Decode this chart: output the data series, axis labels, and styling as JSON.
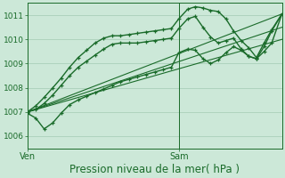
{
  "background_color": "#cce8d8",
  "plot_bg_color": "#cce8d8",
  "grid_color": "#99c4aa",
  "line_color": "#1a6b2a",
  "xlabel": "Pression niveau de la mer( hPa )",
  "xlabel_fontsize": 8.5,
  "ylim": [
    1005.5,
    1011.5
  ],
  "yticks": [
    1006,
    1007,
    1008,
    1009,
    1010,
    1011
  ],
  "ytick_fontsize": 6.5,
  "xtick_labels": [
    "Ven",
    "Sam"
  ],
  "xtick_positions": [
    0.0,
    0.595
  ],
  "vline_x": 0.595,
  "series": [
    {
      "x": [
        0.0,
        0.033,
        0.066,
        0.1,
        0.133,
        0.166,
        0.2,
        0.233,
        0.266,
        0.3,
        0.333,
        0.366,
        0.4,
        0.433,
        0.466,
        0.5,
        0.533,
        0.566,
        0.595,
        0.63,
        0.66,
        0.69,
        0.72,
        0.75,
        0.78,
        0.81,
        0.84,
        0.87,
        0.9,
        0.93,
        0.96,
        1.0
      ],
      "y": [
        1007.0,
        1007.25,
        1007.6,
        1008.0,
        1008.4,
        1008.85,
        1009.25,
        1009.55,
        1009.85,
        1010.05,
        1010.15,
        1010.15,
        1010.2,
        1010.25,
        1010.3,
        1010.35,
        1010.4,
        1010.45,
        1010.85,
        1011.25,
        1011.35,
        1011.3,
        1011.2,
        1011.15,
        1010.85,
        1010.35,
        1009.95,
        1009.65,
        1009.25,
        1009.85,
        1010.4,
        1011.05
      ],
      "has_markers": true,
      "linewidth": 1.0
    },
    {
      "x": [
        0.0,
        0.033,
        0.066,
        0.1,
        0.133,
        0.166,
        0.2,
        0.233,
        0.266,
        0.3,
        0.333,
        0.366,
        0.4,
        0.433,
        0.466,
        0.5,
        0.533,
        0.566,
        0.595,
        0.63,
        0.66,
        0.69,
        0.72,
        0.75,
        0.78,
        0.81,
        0.84,
        0.87,
        0.9,
        0.93,
        0.96,
        1.0
      ],
      "y": [
        1007.0,
        1007.1,
        1007.35,
        1007.7,
        1008.1,
        1008.5,
        1008.85,
        1009.1,
        1009.35,
        1009.6,
        1009.8,
        1009.85,
        1009.85,
        1009.85,
        1009.9,
        1009.95,
        1010.0,
        1010.05,
        1010.45,
        1010.85,
        1010.95,
        1010.5,
        1010.1,
        1009.85,
        1009.95,
        1010.05,
        1009.6,
        1009.3,
        1009.2,
        1009.7,
        1010.35,
        1011.05
      ],
      "has_markers": true,
      "linewidth": 1.0
    },
    {
      "x": [
        0.0,
        1.0
      ],
      "y": [
        1007.0,
        1011.05
      ],
      "has_markers": false,
      "linewidth": 0.8
    },
    {
      "x": [
        0.0,
        1.0
      ],
      "y": [
        1007.0,
        1010.5
      ],
      "has_markers": false,
      "linewidth": 0.8
    },
    {
      "x": [
        0.0,
        1.0
      ],
      "y": [
        1007.0,
        1010.0
      ],
      "has_markers": false,
      "linewidth": 0.8
    },
    {
      "x": [
        0.0,
        0.033,
        0.066,
        0.1,
        0.133,
        0.166,
        0.2,
        0.233,
        0.266,
        0.3,
        0.333,
        0.366,
        0.4,
        0.433,
        0.466,
        0.5,
        0.533,
        0.566,
        0.595,
        0.63,
        0.66,
        0.69,
        0.72,
        0.75,
        0.78,
        0.81,
        0.84,
        0.87,
        0.9,
        0.93,
        0.96,
        1.0
      ],
      "y": [
        1006.95,
        1006.75,
        1006.3,
        1006.55,
        1006.95,
        1007.3,
        1007.5,
        1007.65,
        1007.8,
        1007.95,
        1008.1,
        1008.25,
        1008.35,
        1008.45,
        1008.55,
        1008.65,
        1008.75,
        1008.85,
        1009.45,
        1009.6,
        1009.55,
        1009.2,
        1009.0,
        1009.15,
        1009.45,
        1009.7,
        1009.55,
        1009.3,
        1009.2,
        1009.5,
        1009.85,
        1011.05
      ],
      "has_markers": true,
      "linewidth": 1.0
    }
  ]
}
